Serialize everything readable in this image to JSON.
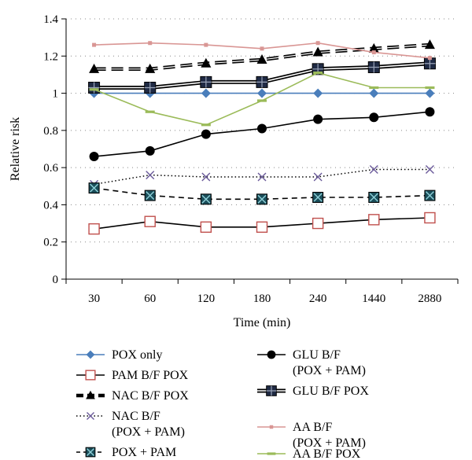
{
  "chart_data": {
    "type": "line",
    "title": "",
    "xlabel": "Time (min)",
    "ylabel": "Relative risk",
    "categories": [
      "30",
      "60",
      "120",
      "180",
      "240",
      "1440",
      "2880"
    ],
    "ylim": [
      0,
      1.4
    ],
    "yticks": [
      "0",
      "0.2",
      "0.4",
      "0.6",
      "0.8",
      "1",
      "1.2",
      "1.4"
    ],
    "grid": true,
    "legend_position": "bottom",
    "series": [
      {
        "name": "POX only",
        "values": [
          1.0,
          1.0,
          1.0,
          1.0,
          1.0,
          1.0,
          1.0
        ],
        "color": "#4a7ebb",
        "marker": "diamond",
        "line": "solid"
      },
      {
        "name": "PAM B/F POX",
        "values": [
          0.27,
          0.31,
          0.28,
          0.28,
          0.3,
          0.32,
          0.33
        ],
        "color": "#000000",
        "marker_color": "#c0504d",
        "marker": "square-open",
        "line": "solid"
      },
      {
        "name": "NAC B/F POX",
        "values": [
          1.13,
          1.13,
          1.16,
          1.18,
          1.22,
          1.24,
          1.26
        ],
        "color": "#000000",
        "marker": "triangle",
        "line": "dashed-double"
      },
      {
        "name": "NAC B/F\n(POX + PAM)",
        "values": [
          0.51,
          0.56,
          0.55,
          0.55,
          0.55,
          0.59,
          0.59
        ],
        "color": "#000000",
        "marker_color": "#6a5a9a",
        "marker": "x",
        "line": "dotted"
      },
      {
        "name": "POX + PAM",
        "values": [
          0.49,
          0.45,
          0.43,
          0.43,
          0.44,
          0.44,
          0.45
        ],
        "color": "#000000",
        "marker_color": "#1a4e5a",
        "marker": "boxed-x",
        "line": "dashed"
      },
      {
        "name": "GLU B/F\n(POX + PAM)",
        "values": [
          0.66,
          0.69,
          0.78,
          0.81,
          0.86,
          0.87,
          0.9
        ],
        "color": "#000000",
        "marker": "circle",
        "line": "solid"
      },
      {
        "name": "GLU B/F POX",
        "values": [
          1.03,
          1.03,
          1.06,
          1.06,
          1.13,
          1.14,
          1.16
        ],
        "color": "#000000",
        "marker": "square-cross",
        "line": "double"
      },
      {
        "name": "AA B/F\n(POX + PAM)",
        "values": [
          1.26,
          1.27,
          1.26,
          1.24,
          1.27,
          1.22,
          1.19
        ],
        "color": "#d99694",
        "marker": "small-square",
        "line": "solid"
      },
      {
        "name": "AA B/F POX",
        "values": [
          1.02,
          0.9,
          0.83,
          0.96,
          1.11,
          1.03,
          1.03
        ],
        "color": "#9bbb59",
        "marker": "dash",
        "line": "solid"
      }
    ]
  }
}
